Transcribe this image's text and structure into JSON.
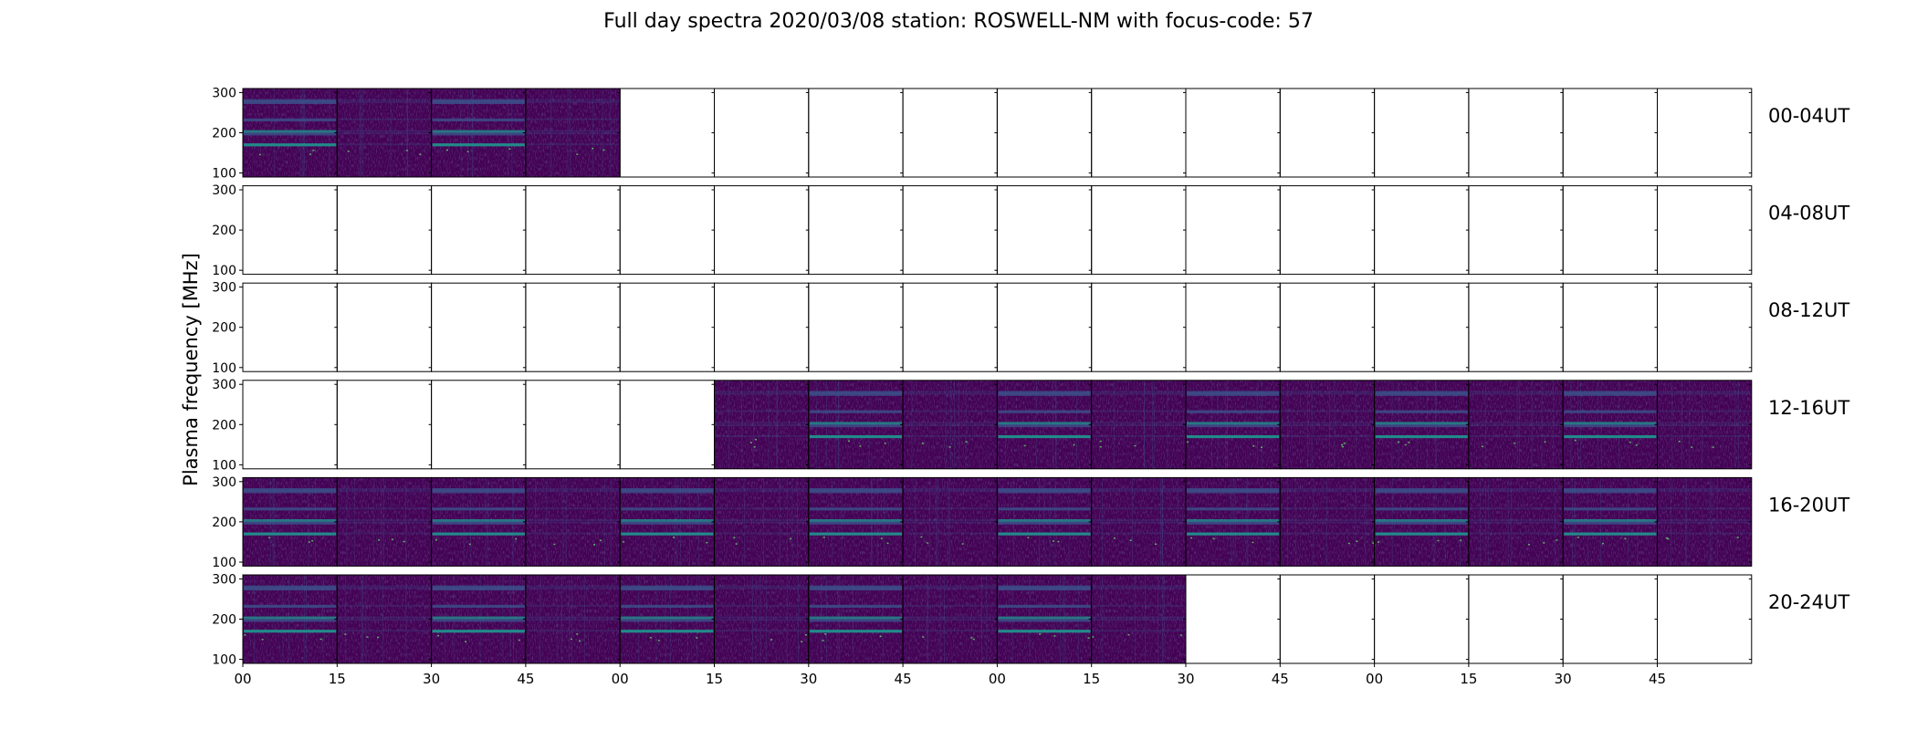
{
  "chart_data": {
    "type": "heatmap",
    "title": "Full day spectra 2020/03/08 station: ROSWELL-NM with focus-code: 57",
    "ylabel": "Plasma frequency [MHz]",
    "xlabel": "",
    "yticks": [
      100,
      200,
      300
    ],
    "ylim": [
      90,
      310
    ],
    "xtick_labels": [
      "00",
      "15",
      "30",
      "45",
      "00",
      "15",
      "30",
      "45",
      "00",
      "15",
      "30",
      "45",
      "00",
      "15",
      "30",
      "45"
    ],
    "panels_per_row": 16,
    "minutes_per_panel": 15,
    "grid": false,
    "colormap": "viridis",
    "colors": {
      "background": "#440154",
      "mid": "#3b528b",
      "high": "#21918c",
      "peak": "#5ec962",
      "frame": "#000000"
    },
    "band_frequencies_mhz": [
      280,
      275,
      232,
      203,
      197,
      170
    ],
    "rows": [
      {
        "label": "00-04UT",
        "available": [
          1,
          1,
          1,
          1,
          0,
          0,
          0,
          0,
          0,
          0,
          0,
          0,
          0,
          0,
          0,
          0
        ],
        "strong_bands": [
          1,
          0,
          1,
          0,
          0,
          0,
          0,
          0,
          0,
          0,
          0,
          0,
          0,
          0,
          0,
          0
        ]
      },
      {
        "label": "04-08UT",
        "available": [
          0,
          0,
          0,
          0,
          0,
          0,
          0,
          0,
          0,
          0,
          0,
          0,
          0,
          0,
          0,
          0
        ],
        "strong_bands": [
          0,
          0,
          0,
          0,
          0,
          0,
          0,
          0,
          0,
          0,
          0,
          0,
          0,
          0,
          0,
          0
        ]
      },
      {
        "label": "08-12UT",
        "available": [
          0,
          0,
          0,
          0,
          0,
          0,
          0,
          0,
          0,
          0,
          0,
          0,
          0,
          0,
          0,
          0
        ],
        "strong_bands": [
          0,
          0,
          0,
          0,
          0,
          0,
          0,
          0,
          0,
          0,
          0,
          0,
          0,
          0,
          0,
          0
        ]
      },
      {
        "label": "12-16UT",
        "available": [
          0,
          0,
          0,
          0,
          0,
          1,
          1,
          1,
          1,
          1,
          1,
          1,
          1,
          1,
          1,
          1
        ],
        "strong_bands": [
          0,
          0,
          0,
          0,
          0,
          0,
          1,
          0,
          1,
          0,
          1,
          0,
          1,
          0,
          1,
          0
        ]
      },
      {
        "label": "16-20UT",
        "available": [
          1,
          1,
          1,
          1,
          1,
          1,
          1,
          1,
          1,
          1,
          1,
          1,
          1,
          1,
          1,
          1
        ],
        "strong_bands": [
          1,
          0,
          1,
          0,
          1,
          0,
          1,
          0,
          1,
          0,
          1,
          0,
          1,
          0,
          1,
          0
        ]
      },
      {
        "label": "20-24UT",
        "available": [
          1,
          1,
          1,
          1,
          1,
          1,
          1,
          1,
          1,
          1,
          0,
          0,
          0,
          0,
          0,
          0
        ],
        "strong_bands": [
          1,
          0,
          1,
          0,
          1,
          0,
          1,
          0,
          1,
          0,
          0,
          0,
          0,
          0,
          0,
          0
        ]
      }
    ]
  }
}
